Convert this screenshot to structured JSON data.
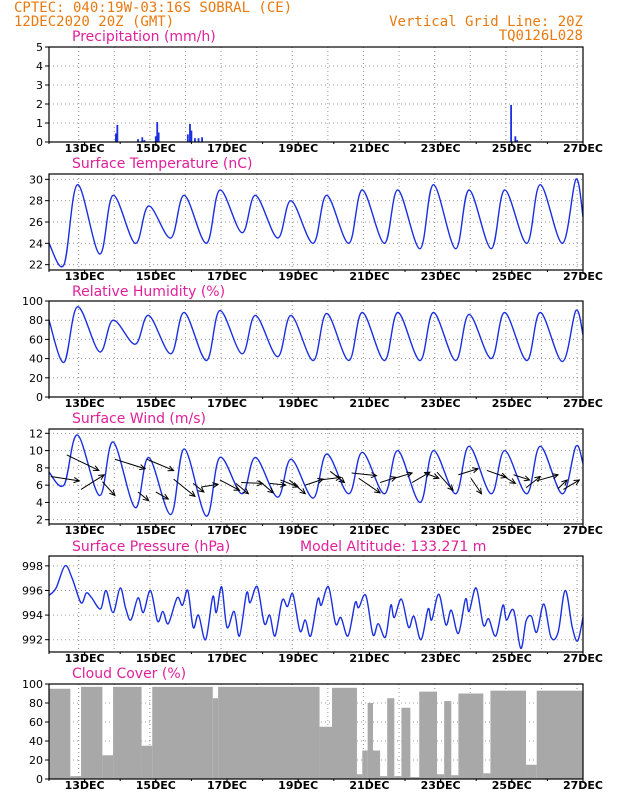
{
  "header": {
    "line1": "CPTEC:   040:19W-03:16S  SOBRAL (CE)",
    "line2": "12DEC2020 20Z (GMT)",
    "right1": "Vertical Grid Line: 20Z",
    "right2": "TQ0126L028"
  },
  "colors": {
    "header": "#e87a10",
    "title": "#e0209a",
    "series": "#1a2fe0",
    "cloud": "#a8a8a8",
    "grid": "#9a9a9a"
  },
  "x_axis": {
    "range_days": [
      12.0,
      27.0
    ],
    "ticks": [
      {
        "label": "13DEC",
        "day": 13
      },
      {
        "label": "15DEC",
        "day": 15
      },
      {
        "label": "17DEC",
        "day": 17
      },
      {
        "label": "19DEC",
        "day": 19
      },
      {
        "label": "21DEC",
        "day": 21
      },
      {
        "label": "23DEC",
        "day": 23
      },
      {
        "label": "25DEC",
        "day": 25
      },
      {
        "label": "27DEC",
        "day": 27
      }
    ]
  },
  "chart_data": [
    {
      "type": "bar",
      "title": "Precipitation (mm/h)",
      "ylim": [
        0,
        5
      ],
      "yticks": [
        0,
        1,
        2,
        3,
        4,
        5
      ],
      "grid": true,
      "points": [
        [
          13.88,
          0.45
        ],
        [
          13.92,
          0.9
        ],
        [
          14.5,
          0.15
        ],
        [
          14.62,
          0.25
        ],
        [
          14.68,
          0.1
        ],
        [
          15.0,
          0.3
        ],
        [
          15.04,
          1.05
        ],
        [
          15.08,
          0.5
        ],
        [
          15.9,
          0.4
        ],
        [
          15.96,
          0.95
        ],
        [
          16.0,
          0.6
        ],
        [
          16.1,
          0.2
        ],
        [
          16.2,
          0.2
        ],
        [
          16.3,
          0.25
        ],
        [
          24.98,
          1.95
        ],
        [
          25.1,
          0.3
        ],
        [
          25.15,
          0.1
        ]
      ]
    },
    {
      "type": "line",
      "title": "Surface Temperature (nC)",
      "ylim": [
        21.5,
        30.5
      ],
      "yticks": [
        22,
        24,
        26,
        28,
        30
      ],
      "grid": true,
      "min_pattern": [
        22.0,
        23.0,
        24.0,
        24.5,
        24.0,
        25.0,
        24.5,
        24.0,
        24.0,
        24.0,
        23.5,
        23.5,
        23.5,
        24.0,
        24.0
      ],
      "max_pattern": [
        29.5,
        28.5,
        27.5,
        28.5,
        29.0,
        28.5,
        28.0,
        28.5,
        29.0,
        29.0,
        29.5,
        29.0,
        29.0,
        29.5,
        30.0
      ],
      "start_value": 24.0,
      "end_value": 26.5
    },
    {
      "type": "line",
      "title": "Relative Humidity (%)",
      "ylim": [
        0,
        100
      ],
      "yticks": [
        0,
        20,
        40,
        60,
        80,
        100
      ],
      "grid": true,
      "min_pattern": [
        36,
        47,
        55,
        45,
        38,
        45,
        42,
        38,
        38,
        38,
        38,
        38,
        40,
        38,
        37
      ],
      "max_pattern": [
        94,
        80,
        85,
        88,
        90,
        85,
        85,
        87,
        88,
        88,
        88,
        86,
        88,
        88,
        90
      ],
      "start_value": 80,
      "end_value": 65
    },
    {
      "type": "line",
      "title": "Surface Wind (m/s)",
      "ylim": [
        1.5,
        12.5
      ],
      "yticks": [
        2,
        4,
        6,
        8,
        10,
        12
      ],
      "grid": true,
      "min_pattern": [
        6.0,
        4.8,
        3.4,
        2.6,
        2.4,
        5.0,
        4.6,
        4.5,
        5.0,
        5.0,
        4.0,
        5.0,
        5.0,
        5.0,
        5.0
      ],
      "max_pattern": [
        11.8,
        11.0,
        9.2,
        10.2,
        9.2,
        9.2,
        9.0,
        9.6,
        9.8,
        10.0,
        10.0,
        10.5,
        10.0,
        10.5,
        10.5
      ],
      "start_value": 7.5,
      "end_value": 8.5,
      "barbs": [
        [
          12.05,
          7.0,
          12.85,
          6.5
        ],
        [
          12.5,
          9.5,
          13.4,
          7.7
        ],
        [
          12.9,
          5.5,
          13.55,
          7.2
        ],
        [
          13.5,
          6.4,
          13.85,
          4.8
        ],
        [
          13.85,
          9.0,
          14.7,
          7.9
        ],
        [
          14.5,
          5.2,
          14.8,
          4.2
        ],
        [
          14.75,
          9.0,
          15.5,
          7.7
        ],
        [
          15.0,
          5.2,
          15.35,
          4.4
        ],
        [
          15.5,
          6.7,
          16.1,
          4.7
        ],
        [
          16.05,
          6.2,
          16.35,
          5.2
        ],
        [
          16.3,
          5.8,
          16.75,
          6.1
        ],
        [
          16.8,
          6.6,
          17.35,
          5.4
        ],
        [
          17.25,
          6.2,
          17.6,
          5.0
        ],
        [
          17.4,
          6.3,
          18.0,
          6.2
        ],
        [
          17.9,
          6.5,
          18.3,
          5.1
        ],
        [
          18.2,
          6.2,
          18.65,
          6.0
        ],
        [
          18.5,
          6.6,
          19.0,
          5.8
        ],
        [
          18.75,
          6.6,
          19.2,
          5.0
        ],
        [
          19.2,
          6.0,
          19.7,
          6.7
        ],
        [
          19.6,
          6.6,
          20.2,
          6.9
        ],
        [
          19.9,
          7.6,
          20.3,
          6.3
        ],
        [
          20.5,
          7.4,
          21.2,
          7.1
        ],
        [
          20.7,
          6.8,
          21.3,
          5.1
        ],
        [
          21.3,
          6.3,
          21.75,
          6.9
        ],
        [
          21.7,
          6.8,
          22.2,
          7.4
        ],
        [
          22.2,
          6.3,
          22.7,
          7.5
        ],
        [
          22.55,
          7.4,
          22.95,
          6.8
        ],
        [
          22.9,
          7.5,
          23.35,
          5.4
        ],
        [
          23.5,
          7.2,
          24.05,
          7.9
        ],
        [
          23.85,
          6.8,
          24.15,
          5.0
        ],
        [
          24.3,
          7.7,
          24.85,
          6.9
        ],
        [
          24.7,
          7.2,
          25.1,
          6.2
        ],
        [
          25.05,
          7.2,
          25.5,
          6.6
        ],
        [
          25.4,
          5.7,
          25.8,
          7.0
        ],
        [
          25.7,
          6.5,
          26.3,
          7.2
        ],
        [
          26.3,
          5.6,
          26.55,
          6.6
        ],
        [
          26.45,
          5.5,
          26.9,
          6.6
        ]
      ]
    },
    {
      "type": "line",
      "title": "Surface Pressure (hPa)",
      "subtitle": "Model Altitude: 133.271 m",
      "ylim": [
        991,
        998.8
      ],
      "yticks": [
        992,
        994,
        996,
        998
      ],
      "grid": true,
      "points": [
        [
          12.0,
          995.6
        ],
        [
          12.2,
          996.2
        ],
        [
          12.45,
          998.0
        ],
        [
          12.65,
          997.0
        ],
        [
          12.9,
          995.0
        ],
        [
          13.05,
          995.8
        ],
        [
          13.2,
          995.4
        ],
        [
          13.45,
          994.5
        ],
        [
          13.6,
          996.0
        ],
        [
          13.8,
          994.2
        ],
        [
          14.0,
          996.2
        ],
        [
          14.15,
          994.6
        ],
        [
          14.3,
          993.6
        ],
        [
          14.5,
          995.4
        ],
        [
          14.65,
          994.2
        ],
        [
          14.85,
          996.0
        ],
        [
          15.05,
          993.5
        ],
        [
          15.2,
          994.3
        ],
        [
          15.35,
          993.3
        ],
        [
          15.6,
          995.4
        ],
        [
          15.75,
          994.8
        ],
        [
          15.9,
          996.0
        ],
        [
          16.05,
          993.0
        ],
        [
          16.2,
          994.0
        ],
        [
          16.4,
          992.0
        ],
        [
          16.6,
          995.5
        ],
        [
          16.7,
          994.2
        ],
        [
          16.85,
          996.3
        ],
        [
          17.0,
          993.0
        ],
        [
          17.2,
          994.3
        ],
        [
          17.35,
          992.3
        ],
        [
          17.55,
          995.8
        ],
        [
          17.65,
          995.0
        ],
        [
          17.85,
          996.3
        ],
        [
          18.05,
          993.3
        ],
        [
          18.2,
          994.0
        ],
        [
          18.35,
          992.3
        ],
        [
          18.55,
          995.2
        ],
        [
          18.7,
          994.7
        ],
        [
          18.85,
          995.7
        ],
        [
          19.05,
          992.7
        ],
        [
          19.2,
          993.6
        ],
        [
          19.35,
          992.3
        ],
        [
          19.55,
          995.3
        ],
        [
          19.65,
          994.8
        ],
        [
          19.85,
          996.3
        ],
        [
          20.05,
          993.3
        ],
        [
          20.2,
          993.8
        ],
        [
          20.4,
          992.3
        ],
        [
          20.6,
          995.0
        ],
        [
          20.7,
          994.6
        ],
        [
          20.9,
          995.6
        ],
        [
          21.1,
          992.4
        ],
        [
          21.25,
          993.3
        ],
        [
          21.45,
          992.2
        ],
        [
          21.6,
          994.8
        ],
        [
          21.7,
          993.8
        ],
        [
          21.9,
          995.3
        ],
        [
          22.1,
          993.0
        ],
        [
          22.25,
          993.9
        ],
        [
          22.45,
          992.0
        ],
        [
          22.65,
          994.5
        ],
        [
          22.75,
          993.6
        ],
        [
          22.95,
          995.7
        ],
        [
          23.15,
          993.2
        ],
        [
          23.3,
          994.4
        ],
        [
          23.5,
          992.5
        ],
        [
          23.7,
          995.3
        ],
        [
          23.8,
          994.3
        ],
        [
          24.0,
          996.2
        ],
        [
          24.2,
          993.2
        ],
        [
          24.35,
          993.7
        ],
        [
          24.55,
          992.3
        ],
        [
          24.75,
          994.8
        ],
        [
          24.85,
          993.6
        ],
        [
          25.05,
          994.4
        ],
        [
          25.25,
          991.3
        ],
        [
          25.4,
          993.5
        ],
        [
          25.55,
          993.9
        ],
        [
          25.7,
          992.6
        ],
        [
          25.9,
          994.9
        ],
        [
          26.1,
          992.2
        ],
        [
          26.3,
          992.6
        ],
        [
          26.5,
          996.0
        ],
        [
          26.7,
          993.0
        ],
        [
          26.85,
          991.9
        ],
        [
          27.0,
          993.8
        ]
      ]
    },
    {
      "type": "area",
      "title": "Cloud Cover (%)",
      "ylim": [
        0,
        100
      ],
      "yticks": [
        0,
        20,
        40,
        60,
        80,
        100
      ],
      "grid": true,
      "segments": [
        [
          12.0,
          12.6,
          95
        ],
        [
          12.6,
          12.9,
          3
        ],
        [
          12.9,
          13.5,
          97
        ],
        [
          13.5,
          13.8,
          25
        ],
        [
          13.8,
          14.6,
          97
        ],
        [
          14.6,
          14.9,
          35
        ],
        [
          14.9,
          16.6,
          97
        ],
        [
          16.6,
          16.75,
          85
        ],
        [
          16.75,
          19.6,
          97
        ],
        [
          19.6,
          19.95,
          55
        ],
        [
          19.95,
          20.65,
          96
        ],
        [
          20.65,
          20.8,
          5
        ],
        [
          20.8,
          20.95,
          30
        ],
        [
          20.95,
          21.1,
          80
        ],
        [
          21.1,
          21.3,
          30
        ],
        [
          21.3,
          21.5,
          3
        ],
        [
          21.5,
          21.7,
          85
        ],
        [
          21.7,
          21.9,
          3
        ],
        [
          21.9,
          22.15,
          75
        ],
        [
          22.15,
          22.4,
          2
        ],
        [
          22.4,
          22.9,
          92
        ],
        [
          22.9,
          23.1,
          5
        ],
        [
          23.1,
          23.3,
          82
        ],
        [
          23.3,
          23.5,
          4
        ],
        [
          23.5,
          24.2,
          90
        ],
        [
          24.2,
          24.4,
          6
        ],
        [
          24.4,
          25.4,
          93
        ],
        [
          25.4,
          25.7,
          15
        ],
        [
          25.7,
          27.0,
          93
        ]
      ]
    }
  ]
}
